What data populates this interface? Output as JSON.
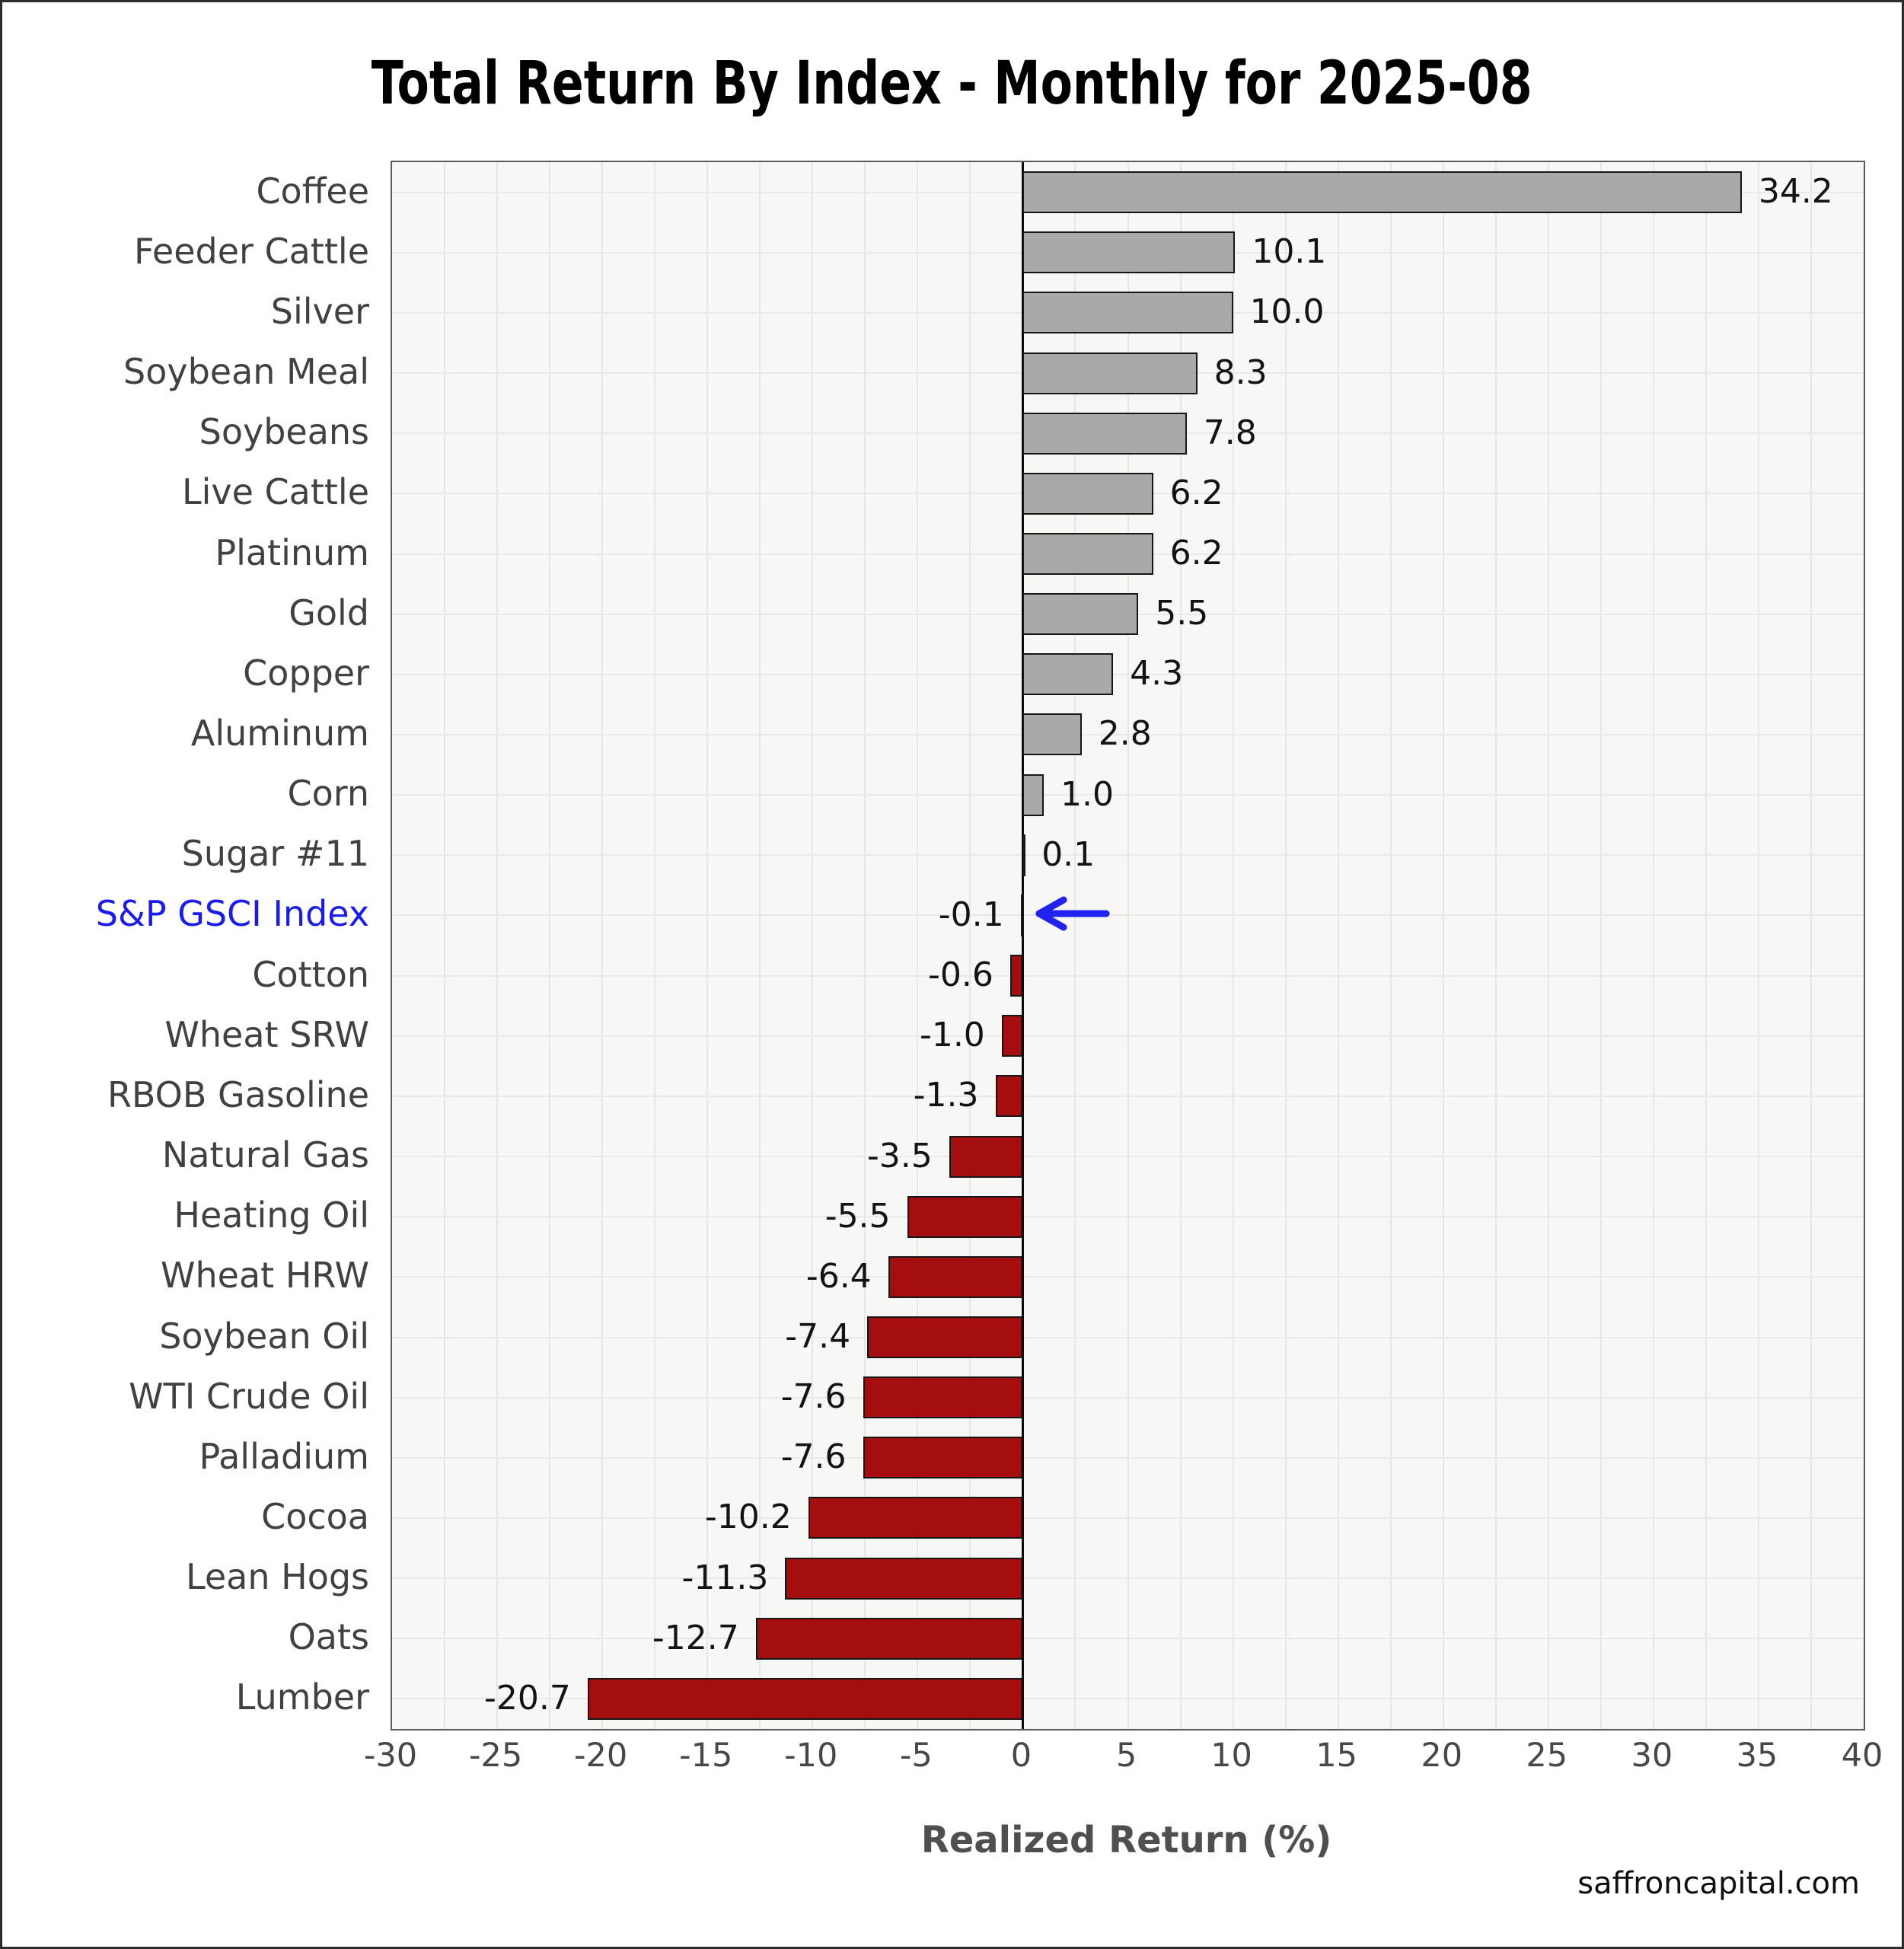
{
  "title": "Total Return By Index - Monthly for 2025-08",
  "footer": "saffroncapital.com",
  "chart_data": {
    "type": "bar",
    "orientation": "horizontal",
    "title": "Total Return By Index - Monthly for 2025-08",
    "xlabel": "Realized Return (%)",
    "xlim": [
      -30,
      40
    ],
    "x_ticks": [
      -30,
      -25,
      -20,
      -15,
      -10,
      -5,
      0,
      5,
      10,
      15,
      20,
      25,
      30,
      35,
      40
    ],
    "x_tick_labels": [
      "-30",
      "-25",
      "-20",
      "-15",
      "-10",
      "-5",
      "0",
      "5",
      "10",
      "15",
      "20",
      "25",
      "30",
      "35",
      "40"
    ],
    "minor_grid_step": 2.5,
    "grid": true,
    "legend": false,
    "categories": [
      "Coffee",
      "Feeder Cattle",
      "Silver",
      "Soybean Meal",
      "Soybeans",
      "Live Cattle",
      "Platinum",
      "Gold",
      "Copper",
      "Aluminum",
      "Corn",
      "Sugar #11",
      "S&P GSCI Index",
      "Cotton",
      "Wheat SRW",
      "RBOB Gasoline",
      "Natural Gas",
      "Heating Oil",
      "Wheat HRW",
      "Soybean Oil",
      "WTI Crude Oil",
      "Palladium",
      "Cocoa",
      "Lean Hogs",
      "Oats",
      "Lumber"
    ],
    "values": [
      34.2,
      10.1,
      10.0,
      8.3,
      7.8,
      6.2,
      6.2,
      5.5,
      4.3,
      2.8,
      1.0,
      0.1,
      -0.1,
      -0.6,
      -1.0,
      -1.3,
      -3.5,
      -5.5,
      -6.4,
      -7.4,
      -7.6,
      -7.6,
      -10.2,
      -11.3,
      -12.7,
      -20.7
    ],
    "value_labels": [
      "34.2",
      "10.1",
      "10.0",
      "8.3",
      "7.8",
      "6.2",
      "6.2",
      "5.5",
      "4.3",
      "2.8",
      "1.0",
      "0.1",
      "-0.1",
      "-0.6",
      "-1.0",
      "-1.3",
      "-3.5",
      "-5.5",
      "-6.4",
      "-7.4",
      "-7.6",
      "-7.6",
      "-10.2",
      "-11.3",
      "-12.7",
      "-20.7"
    ],
    "highlight_index": 12,
    "highlight_category": "S&P GSCI Index",
    "annotations": {
      "arrow_at_category": "S&P GSCI Index"
    },
    "colors": {
      "positive_bar": "#a9a9a9",
      "negative_bar": "#a40e0e",
      "bar_border": "#161616",
      "highlight_label": "#1b1bf0",
      "arrow": "#2222f0",
      "plot_background": "#f7f7f6",
      "gridline": "#e6e6e6",
      "zero_line": "#0b0b0b",
      "category_label": "#414141",
      "tick_label": "#474747",
      "axis_title": "#4f4f4f",
      "title": "#000000"
    }
  }
}
